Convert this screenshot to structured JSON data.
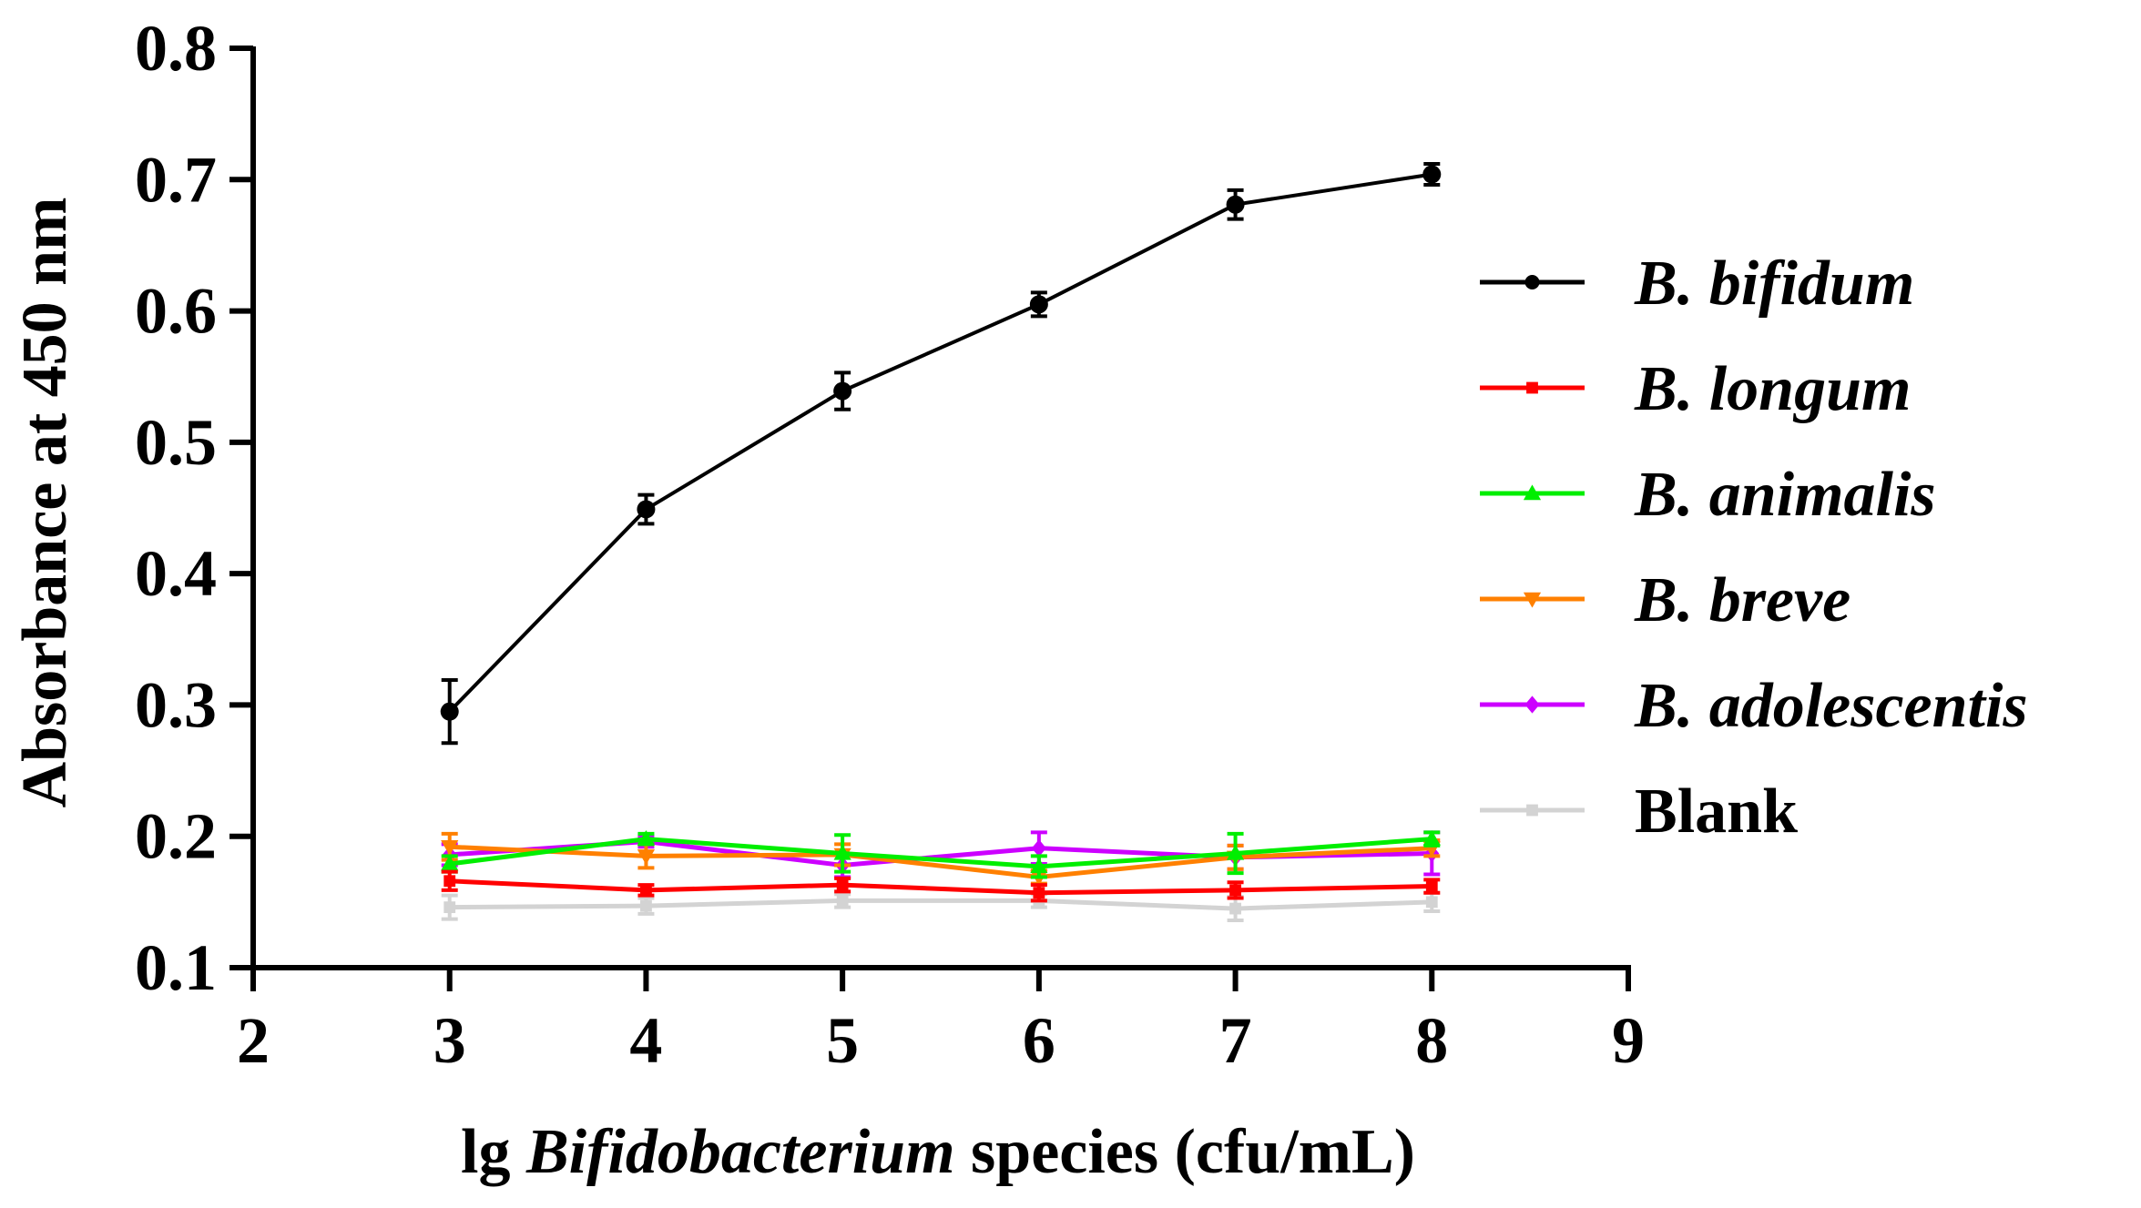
{
  "chart_data": {
    "type": "line",
    "title": "",
    "xlabel": {
      "prefix": "lg ",
      "italic": "Bifidobacterium",
      "suffix": " species (cfu/mL)"
    },
    "ylabel": "Absorbance at 450 nm",
    "xlim": [
      2,
      9
    ],
    "ylim": [
      0.1,
      0.8
    ],
    "xticks": [
      "2",
      "3",
      "4",
      "5",
      "6",
      "7",
      "8",
      "9"
    ],
    "yticks": [
      "0.1",
      "0.2",
      "0.3",
      "0.4",
      "0.5",
      "0.6",
      "0.7",
      "0.8"
    ],
    "x": [
      3,
      4,
      5,
      6,
      7,
      8
    ],
    "legend_position": "right",
    "series": [
      {
        "name": "B. bifidum",
        "italic": true,
        "color": "#000000",
        "marker": "circle",
        "values": [
          0.295,
          0.449,
          0.539,
          0.605,
          0.681,
          0.704
        ],
        "errors": [
          0.024,
          0.011,
          0.014,
          0.009,
          0.011,
          0.008
        ]
      },
      {
        "name": "B. longum",
        "italic": true,
        "color": "#ff0000",
        "marker": "square",
        "values": [
          0.166,
          0.159,
          0.163,
          0.157,
          0.159,
          0.162
        ],
        "errors": [
          0.007,
          0.004,
          0.005,
          0.006,
          0.006,
          0.005
        ]
      },
      {
        "name": "B. animalis",
        "italic": true,
        "color": "#00ee00",
        "marker": "triangle-up",
        "values": [
          0.179,
          0.198,
          0.187,
          0.177,
          0.187,
          0.198
        ],
        "errors": [
          0.006,
          0.004,
          0.014,
          0.008,
          0.015,
          0.005
        ]
      },
      {
        "name": "B. breve",
        "italic": true,
        "color": "#ff8000",
        "marker": "triangle-down",
        "values": [
          0.192,
          0.185,
          0.186,
          0.169,
          0.184,
          0.191
        ],
        "errors": [
          0.01,
          0.009,
          0.008,
          0.005,
          0.009,
          0.006
        ]
      },
      {
        "name": "B. adolescentis",
        "italic": true,
        "color": "#cc00ff",
        "marker": "diamond",
        "values": [
          0.186,
          0.196,
          0.178,
          0.191,
          0.184,
          0.187
        ],
        "errors": [
          0.008,
          0.004,
          0.009,
          0.012,
          0.009,
          0.016
        ]
      },
      {
        "name": "Blank",
        "italic": false,
        "color": "#d3d3d3",
        "marker": "square",
        "values": [
          0.146,
          0.147,
          0.151,
          0.151,
          0.145,
          0.15
        ],
        "errors": [
          0.009,
          0.006,
          0.005,
          0.005,
          0.009,
          0.007
        ]
      }
    ]
  }
}
